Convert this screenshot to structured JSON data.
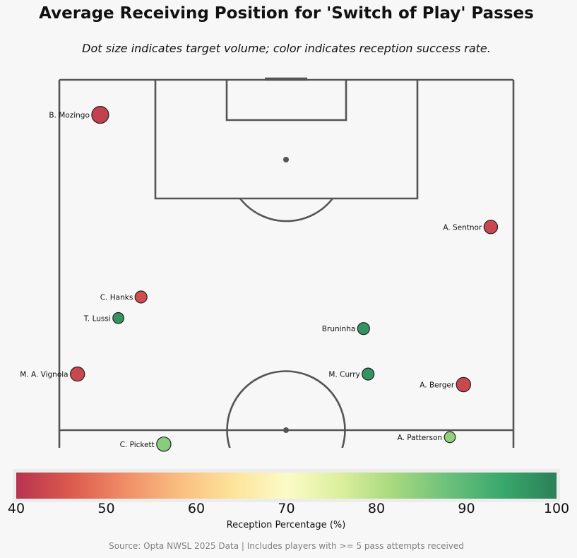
{
  "title": "Average Receiving Position for 'Switch of Play' Passes",
  "subtitle": "Dot size indicates target volume; color indicates reception success rate.",
  "source": "Source: Opta NWSL 2025 Data | Includes players with >= 5 pass attempts received",
  "colors": {
    "background": "#f7f7f7",
    "pitch_lines": "#555555",
    "colormap": [
      "#b73350",
      "#db5a4d",
      "#f08c67",
      "#f9bd7f",
      "#fde39a",
      "#fbfbc7",
      "#dcef9c",
      "#a6d87e",
      "#6cc07c",
      "#3aa86c",
      "#2b8058"
    ]
  },
  "chart_data": {
    "type": "scatter",
    "xlabel": "",
    "ylabel": "",
    "colorbar": {
      "label": "Reception Percentage (%)",
      "range": [
        40,
        100
      ],
      "ticks": [
        "40",
        "50",
        "60",
        "70",
        "80",
        "90",
        "100"
      ]
    },
    "pitch": {
      "x_range": [
        0,
        100
      ],
      "y_range": [
        50,
        100
      ]
    },
    "points": [
      {
        "name": "B. Mozingo",
        "x": 9,
        "y": 95,
        "reception_pct": 42,
        "volume": 14
      },
      {
        "name": "A. Sentnor",
        "x": 95,
        "y": 79,
        "reception_pct": 43,
        "volume": 9
      },
      {
        "name": "C. Hanks",
        "x": 18,
        "y": 69,
        "reception_pct": 44,
        "volume": 7
      },
      {
        "name": "T. Lussi",
        "x": 13,
        "y": 66,
        "reception_pct": 97,
        "volume": 6
      },
      {
        "name": "Bruninha",
        "x": 67,
        "y": 64.5,
        "reception_pct": 97,
        "volume": 7
      },
      {
        "name": "M. A. Vignola",
        "x": 4,
        "y": 58,
        "reception_pct": 43,
        "volume": 10
      },
      {
        "name": "M. Curry",
        "x": 68,
        "y": 58,
        "reception_pct": 97,
        "volume": 7
      },
      {
        "name": "A. Berger",
        "x": 89,
        "y": 56.5,
        "reception_pct": 43,
        "volume": 10
      },
      {
        "name": "C. Pickett",
        "x": 23,
        "y": 48,
        "reception_pct": 85,
        "volume": 10
      },
      {
        "name": "A. Patterson",
        "x": 86,
        "y": 49,
        "reception_pct": 84,
        "volume": 6
      }
    ]
  }
}
